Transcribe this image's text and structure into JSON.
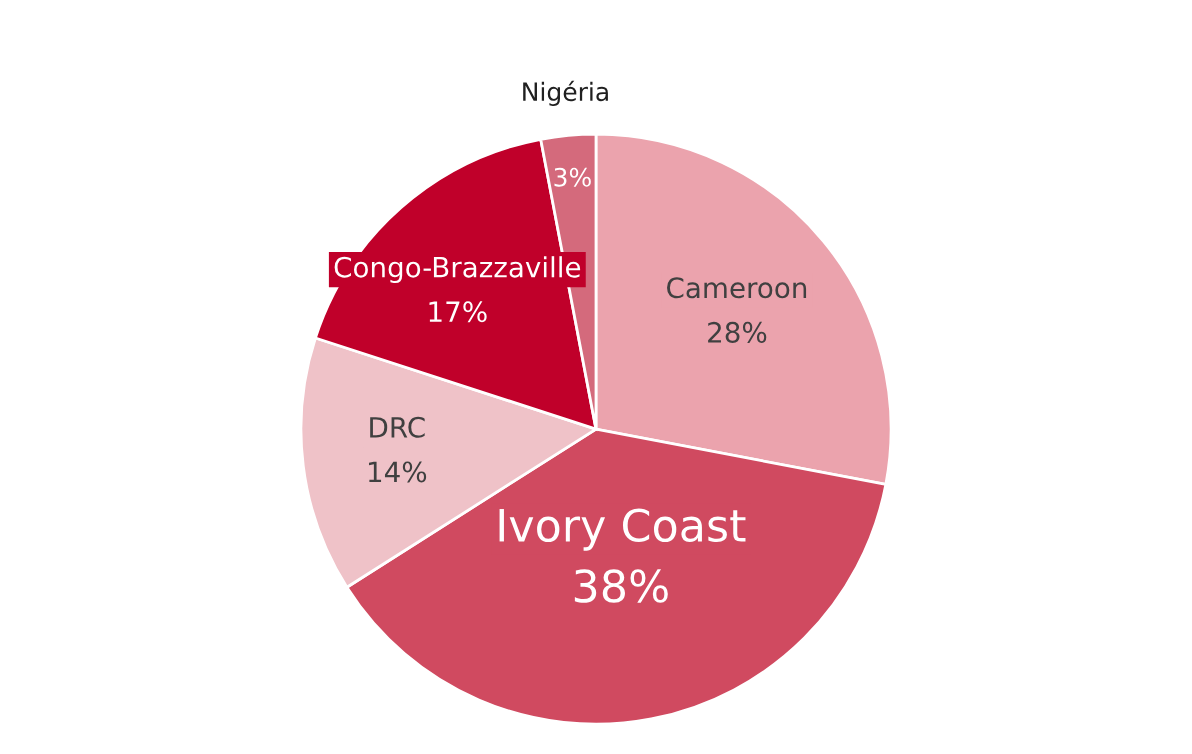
{
  "chart_data": {
    "type": "pie",
    "categories": [
      "Cameroon",
      "Ivory Coast",
      "DRC",
      "Congo-Brazzaville",
      "Nigéria"
    ],
    "values": [
      28,
      38,
      14,
      17,
      3
    ],
    "colors": [
      "#eba3ad",
      "#d04a60",
      "#efc2c8",
      "#c0002a",
      "#d46a7c"
    ],
    "value_labels": [
      "28%",
      "38%",
      "14%",
      "17%",
      "3%"
    ]
  }
}
